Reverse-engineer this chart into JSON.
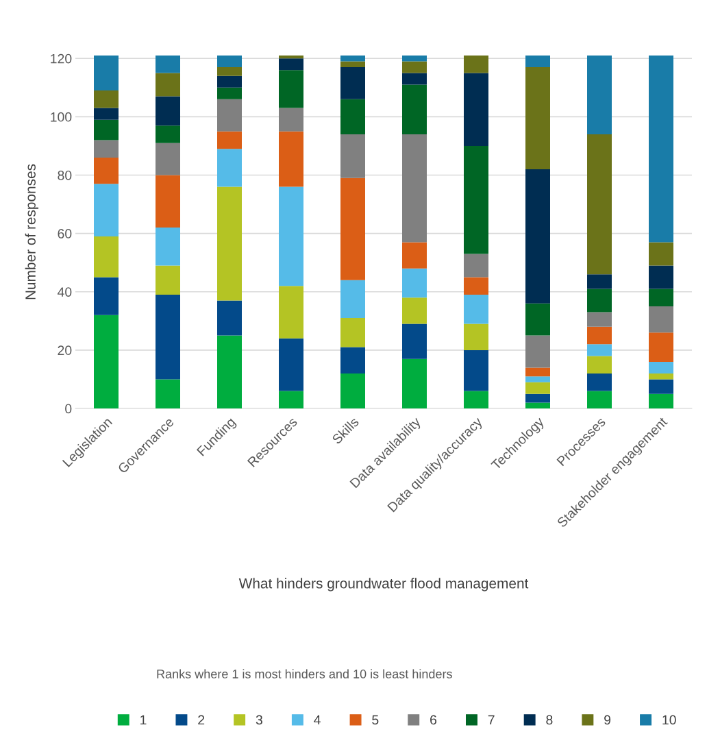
{
  "chart_data": {
    "type": "bar",
    "stacked": true,
    "xlabel": "What hinders groundwater flood management",
    "ylabel": "Number of responses",
    "categories": [
      "Legislation",
      "Governance",
      "Funding",
      "Resources",
      "Skills",
      "Data availability",
      "Data quality/accuracy",
      "Technology",
      "Processes",
      "Stakeholder engagement"
    ],
    "series": [
      {
        "name": "1",
        "color": "#00ad3f",
        "values": [
          32,
          10,
          25,
          6,
          12,
          17,
          6,
          2,
          6,
          5
        ]
      },
      {
        "name": "2",
        "color": "#034a8a",
        "values": [
          13,
          29,
          12,
          18,
          9,
          12,
          14,
          3,
          6,
          5
        ]
      },
      {
        "name": "3",
        "color": "#b4c424",
        "values": [
          14,
          10,
          39,
          18,
          10,
          9,
          9,
          4,
          6,
          2
        ]
      },
      {
        "name": "4",
        "color": "#55bbe8",
        "values": [
          18,
          13,
          13,
          34,
          13,
          10,
          10,
          2,
          4,
          4
        ]
      },
      {
        "name": "5",
        "color": "#db5e16",
        "values": [
          9,
          18,
          6,
          19,
          35,
          9,
          6,
          3,
          6,
          10
        ]
      },
      {
        "name": "6",
        "color": "#808080",
        "values": [
          6,
          11,
          11,
          8,
          15,
          37,
          8,
          11,
          5,
          9
        ]
      },
      {
        "name": "7",
        "color": "#006625",
        "values": [
          7,
          6,
          4,
          13,
          12,
          17,
          37,
          11,
          8,
          6
        ]
      },
      {
        "name": "8",
        "color": "#002d52",
        "values": [
          4,
          10,
          4,
          4,
          11,
          4,
          25,
          46,
          5,
          8
        ]
      },
      {
        "name": "9",
        "color": "#6b7319",
        "values": [
          6,
          8,
          3,
          1,
          2,
          4,
          6,
          35,
          48,
          8
        ]
      },
      {
        "name": "10",
        "color": "#197ca8",
        "values": [
          12,
          6,
          4,
          0,
          2,
          2,
          0,
          4,
          27,
          64
        ]
      }
    ],
    "ylim": [
      0,
      121
    ],
    "yticks": [
      0,
      20,
      40,
      60,
      80,
      100,
      120
    ],
    "grid": "y",
    "legend": "bottom",
    "annotations": [
      "Ranks where 1 is most hinders and 10 is least hinders"
    ]
  }
}
